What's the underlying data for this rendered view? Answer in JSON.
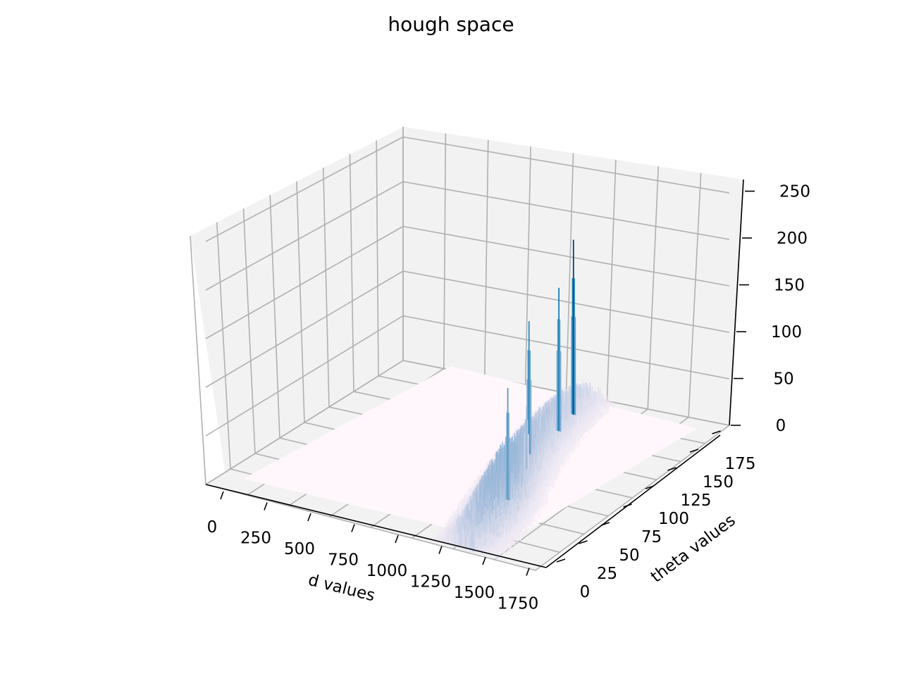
{
  "chart_data": {
    "type": "surface3d",
    "title": "hough space",
    "xlabel": "d values",
    "ylabel": "theta values",
    "zlabel": "",
    "x_ticks": [
      "0",
      "250",
      "500",
      "750",
      "1000",
      "1250",
      "1500",
      "1750"
    ],
    "y_ticks": [
      "0",
      "25",
      "50",
      "75",
      "100",
      "125",
      "150",
      "175"
    ],
    "z_ticks": [
      "0",
      "50",
      "100",
      "150",
      "200",
      "250"
    ],
    "xlim": [
      0,
      1850
    ],
    "ylim": [
      0,
      185
    ],
    "zlim": [
      0,
      260
    ],
    "grid": true,
    "colormap": "PuBu",
    "colors": {
      "pane": "#f2f2f2",
      "grid": "#b0b0b0",
      "base": "#fff7fb",
      "low": "#ece7f2",
      "mid": "#74a9cf",
      "high": "#023858"
    },
    "peaks": [
      {
        "d": 1020,
        "theta": 160,
        "votes": 250
      },
      {
        "d": 1070,
        "theta": 140,
        "votes": 205
      },
      {
        "d": 1090,
        "theta": 110,
        "votes": 190
      },
      {
        "d": 1300,
        "theta": 60,
        "votes": 160
      },
      {
        "d": 1180,
        "theta": 95,
        "votes": 90
      }
    ],
    "ridge_profile": [
      {
        "theta": 0,
        "d_center": 1430,
        "votes": 35
      },
      {
        "theta": 20,
        "d_center": 1400,
        "votes": 55
      },
      {
        "theta": 40,
        "d_center": 1350,
        "votes": 70
      },
      {
        "theta": 60,
        "d_center": 1290,
        "votes": 75
      },
      {
        "theta": 80,
        "d_center": 1220,
        "votes": 60
      },
      {
        "theta": 100,
        "d_center": 1150,
        "votes": 50
      },
      {
        "theta": 120,
        "d_center": 1090,
        "votes": 45
      },
      {
        "theta": 140,
        "d_center": 1040,
        "votes": 40
      },
      {
        "theta": 160,
        "d_center": 1000,
        "votes": 35
      },
      {
        "theta": 179,
        "d_center": 980,
        "votes": 25
      }
    ]
  }
}
